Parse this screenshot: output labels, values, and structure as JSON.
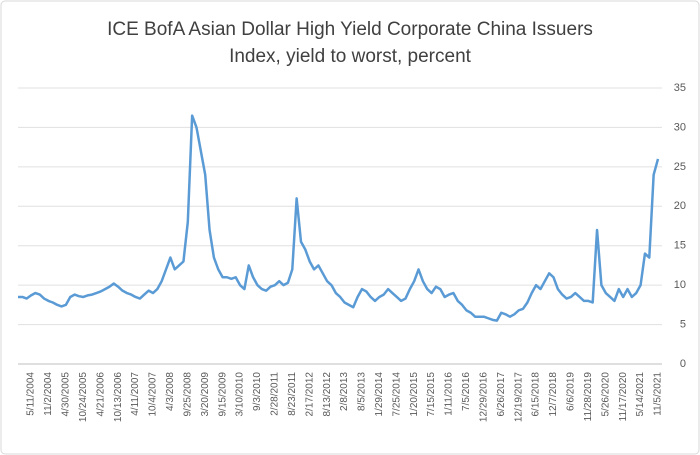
{
  "chart_data": {
    "type": "line",
    "title": [
      "ICE BofA Asian Dollar High Yield Corporate China Issuers",
      "Index, yield to worst, percent"
    ],
    "categories": [
      null,
      null,
      null,
      "5/11/2004",
      null,
      null,
      null,
      "11/2/2004",
      null,
      null,
      null,
      "4/30/2005",
      null,
      null,
      null,
      "10/24/2005",
      null,
      null,
      null,
      "4/21/2006",
      null,
      null,
      null,
      "10/13/2006",
      null,
      null,
      null,
      "4/11/2007",
      null,
      null,
      null,
      "10/4/2007",
      null,
      null,
      null,
      "4/3/2008",
      null,
      null,
      null,
      "9/25/2008",
      null,
      null,
      null,
      "3/20/2009",
      null,
      null,
      null,
      "9/15/2009",
      null,
      null,
      null,
      "3/10/2010",
      null,
      null,
      null,
      "9/3/2010",
      null,
      null,
      null,
      "2/28/2011",
      null,
      null,
      null,
      "8/23/2011",
      null,
      null,
      null,
      "2/17/2012",
      null,
      null,
      null,
      "8/13/2012",
      null,
      null,
      null,
      "2/8/2013",
      null,
      null,
      null,
      "8/5/2013",
      null,
      null,
      null,
      "1/29/2014",
      null,
      null,
      null,
      "7/25/2014",
      null,
      null,
      null,
      "1/20/2015",
      null,
      null,
      null,
      "7/15/2015",
      null,
      null,
      null,
      "1/11/2016",
      null,
      null,
      null,
      "7/5/2016",
      null,
      null,
      null,
      "12/29/2016",
      null,
      null,
      null,
      "6/26/2017",
      null,
      null,
      null,
      "12/19/2017",
      null,
      null,
      null,
      "6/15/2018",
      null,
      null,
      null,
      "12/7/2018",
      null,
      null,
      null,
      "6/6/2019",
      null,
      null,
      null,
      "11/28/2019",
      null,
      null,
      null,
      "5/26/2020",
      null,
      null,
      null,
      "11/17/2020",
      null,
      null,
      null,
      "5/14/2021",
      null,
      null,
      null,
      "11/5/2021"
    ],
    "series": [
      {
        "color": "#5b9bd5",
        "values": [
          8.5,
          8.5,
          8.3,
          8.7,
          9.0,
          8.8,
          8.3,
          8.0,
          7.8,
          7.5,
          7.3,
          7.5,
          8.5,
          8.8,
          8.6,
          8.5,
          8.7,
          8.8,
          9.0,
          9.2,
          9.5,
          9.8,
          10.2,
          9.8,
          9.3,
          9.0,
          8.8,
          8.5,
          8.3,
          8.8,
          9.3,
          9.0,
          9.5,
          10.5,
          12.0,
          13.5,
          12.0,
          12.5,
          13.0,
          18.0,
          31.5,
          30.0,
          27.0,
          24.0,
          17.0,
          13.5,
          12.0,
          11.0,
          11.0,
          10.8,
          11.0,
          10.0,
          9.5,
          12.5,
          11.0,
          10.0,
          9.5,
          9.3,
          9.8,
          10.0,
          10.5,
          10.0,
          10.3,
          12.0,
          21.0,
          15.5,
          14.5,
          13.0,
          12.0,
          12.5,
          11.5,
          10.5,
          10.0,
          9.0,
          8.5,
          7.8,
          7.5,
          7.2,
          8.5,
          9.5,
          9.2,
          8.5,
          8.0,
          8.5,
          8.8,
          9.5,
          9.0,
          8.5,
          8.0,
          8.3,
          9.5,
          10.5,
          12.0,
          10.5,
          9.5,
          9.0,
          9.8,
          9.5,
          8.5,
          8.8,
          9.0,
          8.0,
          7.5,
          6.8,
          6.5,
          6.0,
          6.0,
          6.0,
          5.8,
          5.6,
          5.5,
          6.5,
          6.3,
          6.0,
          6.3,
          6.8,
          7.0,
          7.8,
          9.0,
          10.0,
          9.5,
          10.5,
          11.5,
          11.0,
          9.5,
          8.8,
          8.3,
          8.5,
          9.0,
          8.5,
          8.0,
          8.0,
          7.8,
          17.0,
          10.0,
          9.0,
          8.5,
          8.0,
          9.5,
          8.5,
          9.5,
          8.5,
          9.0,
          10.0,
          14.0,
          13.5,
          24.0,
          26.0
        ]
      }
    ],
    "ylim": [
      0,
      35
    ],
    "yticks": [
      0,
      5,
      10,
      15,
      20,
      25,
      30,
      35
    ],
    "grid": true
  }
}
